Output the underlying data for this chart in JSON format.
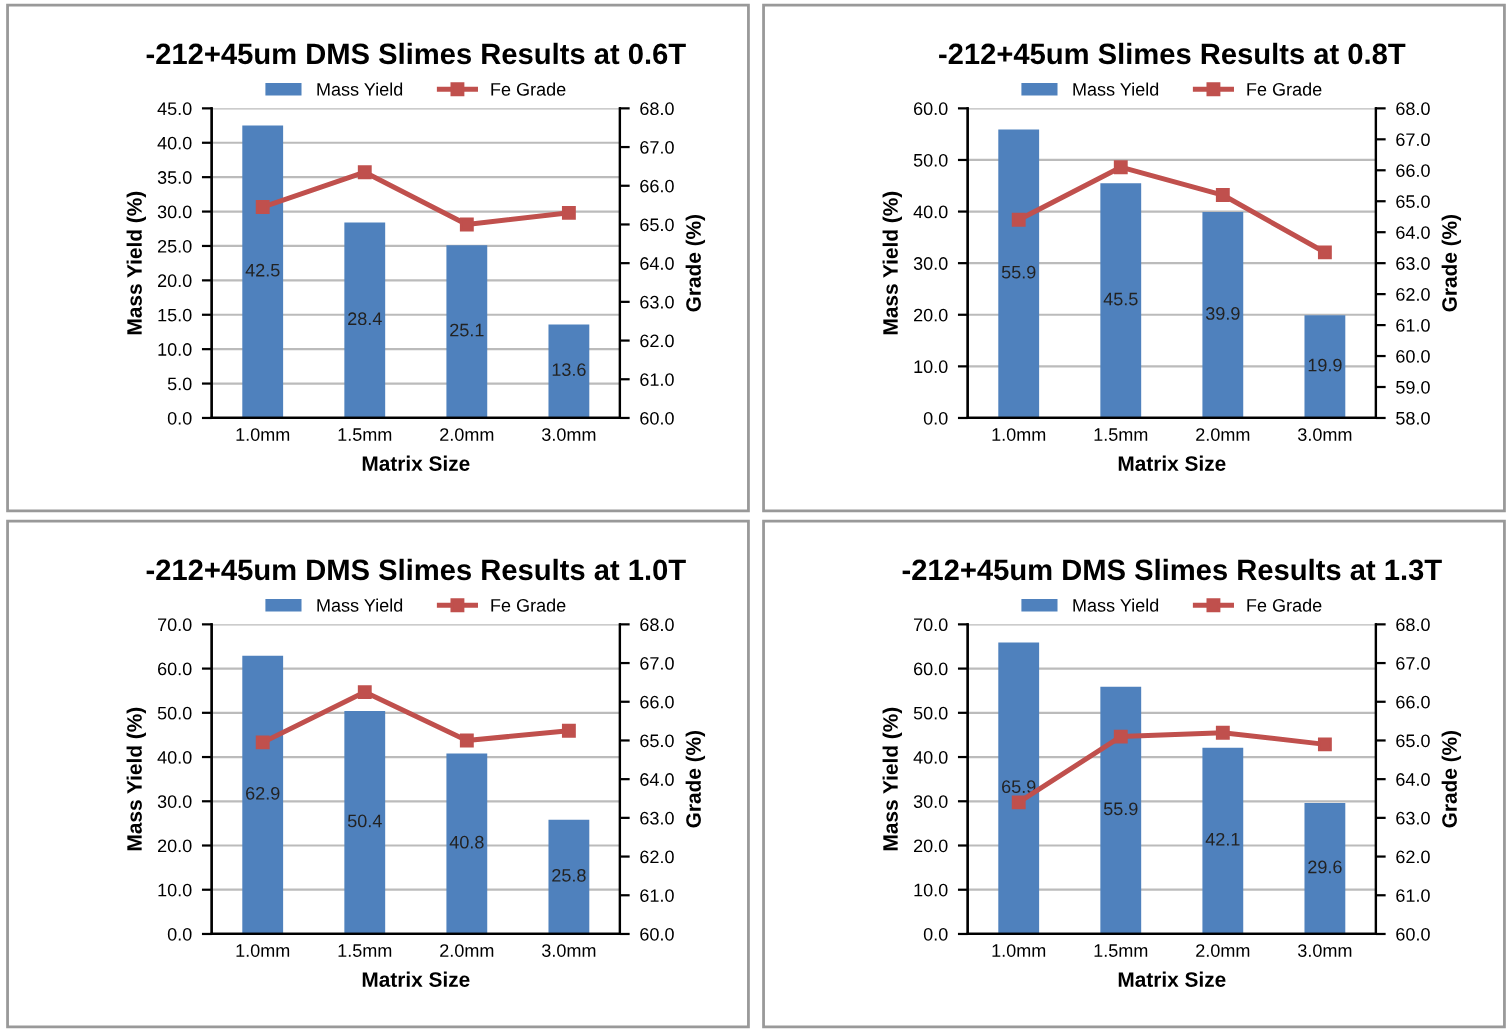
{
  "chart_data": [
    {
      "type": "bar",
      "title": "-212+45um DMS Slimes Results at 0.6T",
      "xlabel": "Matrix Size",
      "ylabel": "Mass Yield (%)",
      "y2label": "Grade (%)",
      "categories": [
        "1.0mm",
        "1.5mm",
        "2.0mm",
        "3.0mm"
      ],
      "series": [
        {
          "name": "Mass Yield",
          "color": "#4f81bd",
          "values": [
            42.5,
            28.4,
            25.1,
            13.6
          ],
          "data_labels": true
        },
        {
          "name": "Fe Grade",
          "type": "line",
          "axis": "y2",
          "color": "#c0504d",
          "marker": "square",
          "values": [
            65.45,
            66.35,
            65.0,
            65.3
          ]
        }
      ],
      "ylim": [
        0,
        45
      ],
      "yticks": [
        {
          "value": 0,
          "label": "0.0"
        },
        {
          "value": 5,
          "label": "5.0"
        },
        {
          "value": 10,
          "label": "10.0"
        },
        {
          "value": 15,
          "label": "15.0"
        },
        {
          "value": 20,
          "label": "20.0"
        },
        {
          "value": 25,
          "label": "25.0"
        },
        {
          "value": 30,
          "label": "30.0"
        },
        {
          "value": 35,
          "label": "35.0"
        },
        {
          "value": 40,
          "label": "40.0"
        },
        {
          "value": 45,
          "label": "45.0"
        }
      ],
      "y2lim": [
        60,
        68
      ],
      "y2ticks": [
        {
          "value": 60,
          "label": "60.0"
        },
        {
          "value": 61,
          "label": "61.0"
        },
        {
          "value": 62,
          "label": "62.0"
        },
        {
          "value": 63,
          "label": "63.0"
        },
        {
          "value": 64,
          "label": "64.0"
        },
        {
          "value": 65,
          "label": "65.0"
        },
        {
          "value": 66,
          "label": "66.0"
        },
        {
          "value": 67,
          "label": "67.0"
        },
        {
          "value": 68,
          "label": "68.0"
        }
      ],
      "grid": "y",
      "legend": "top"
    },
    {
      "type": "bar",
      "title": "-212+45um Slimes Results at 0.8T",
      "xlabel": "Matrix Size",
      "ylabel": "Mass Yield (%)",
      "y2label": "Grade (%)",
      "categories": [
        "1.0mm",
        "1.5mm",
        "2.0mm",
        "3.0mm"
      ],
      "series": [
        {
          "name": "Mass Yield",
          "color": "#4f81bd",
          "values": [
            55.9,
            45.5,
            39.9,
            19.9
          ],
          "data_labels": true
        },
        {
          "name": "Fe Grade",
          "type": "line",
          "axis": "y2",
          "color": "#c0504d",
          "marker": "square",
          "values": [
            64.4,
            66.1,
            65.2,
            63.35
          ]
        }
      ],
      "ylim": [
        0,
        60
      ],
      "yticks": [
        {
          "value": 0,
          "label": "0.0"
        },
        {
          "value": 10,
          "label": "10.0"
        },
        {
          "value": 20,
          "label": "20.0"
        },
        {
          "value": 30,
          "label": "30.0"
        },
        {
          "value": 40,
          "label": "40.0"
        },
        {
          "value": 50,
          "label": "50.0"
        },
        {
          "value": 60,
          "label": "60.0"
        }
      ],
      "y2lim": [
        58,
        68
      ],
      "y2ticks": [
        {
          "value": 58,
          "label": "58.0"
        },
        {
          "value": 59,
          "label": "59.0"
        },
        {
          "value": 60,
          "label": "60.0"
        },
        {
          "value": 61,
          "label": "61.0"
        },
        {
          "value": 62,
          "label": "62.0"
        },
        {
          "value": 63,
          "label": "63.0"
        },
        {
          "value": 64,
          "label": "64.0"
        },
        {
          "value": 65,
          "label": "65.0"
        },
        {
          "value": 66,
          "label": "66.0"
        },
        {
          "value": 67,
          "label": "67.0"
        },
        {
          "value": 68,
          "label": "68.0"
        }
      ],
      "grid": "y",
      "legend": "top"
    },
    {
      "type": "bar",
      "title": "-212+45um DMS Slimes Results at 1.0T",
      "xlabel": "Matrix Size",
      "ylabel": "Mass Yield (%)",
      "y2label": "Grade (%)",
      "categories": [
        "1.0mm",
        "1.5mm",
        "2.0mm",
        "3.0mm"
      ],
      "series": [
        {
          "name": "Mass Yield",
          "color": "#4f81bd",
          "values": [
            62.9,
            50.4,
            40.8,
            25.8
          ],
          "data_labels": true
        },
        {
          "name": "Fe Grade",
          "type": "line",
          "axis": "y2",
          "color": "#c0504d",
          "marker": "square",
          "values": [
            64.95,
            66.25,
            65.0,
            65.25
          ]
        }
      ],
      "ylim": [
        0,
        70
      ],
      "yticks": [
        {
          "value": 0,
          "label": "0.0"
        },
        {
          "value": 10,
          "label": "10.0"
        },
        {
          "value": 20,
          "label": "20.0"
        },
        {
          "value": 30,
          "label": "30.0"
        },
        {
          "value": 40,
          "label": "40.0"
        },
        {
          "value": 50,
          "label": "50.0"
        },
        {
          "value": 60,
          "label": "60.0"
        },
        {
          "value": 70,
          "label": "70.0"
        }
      ],
      "y2lim": [
        60,
        68
      ],
      "y2ticks": [
        {
          "value": 60,
          "label": "60.0"
        },
        {
          "value": 61,
          "label": "61.0"
        },
        {
          "value": 62,
          "label": "62.0"
        },
        {
          "value": 63,
          "label": "63.0"
        },
        {
          "value": 64,
          "label": "64.0"
        },
        {
          "value": 65,
          "label": "65.0"
        },
        {
          "value": 66,
          "label": "66.0"
        },
        {
          "value": 67,
          "label": "67.0"
        },
        {
          "value": 68,
          "label": "68.0"
        }
      ],
      "grid": "y",
      "legend": "top"
    },
    {
      "type": "bar",
      "title": "-212+45um DMS Slimes Results at 1.3T",
      "xlabel": "Matrix Size",
      "ylabel": "Mass Yield (%)",
      "y2label": "Grade (%)",
      "categories": [
        "1.0mm",
        "1.5mm",
        "2.0mm",
        "3.0mm"
      ],
      "series": [
        {
          "name": "Mass Yield",
          "color": "#4f81bd",
          "values": [
            65.9,
            55.9,
            42.1,
            29.6
          ],
          "data_labels": true
        },
        {
          "name": "Fe Grade",
          "type": "line",
          "axis": "y2",
          "color": "#c0504d",
          "marker": "square",
          "values": [
            63.4,
            65.1,
            65.2,
            64.9
          ]
        }
      ],
      "ylim": [
        0,
        70
      ],
      "yticks": [
        {
          "value": 0,
          "label": "0.0"
        },
        {
          "value": 10,
          "label": "10.0"
        },
        {
          "value": 20,
          "label": "20.0"
        },
        {
          "value": 30,
          "label": "30.0"
        },
        {
          "value": 40,
          "label": "40.0"
        },
        {
          "value": 50,
          "label": "50.0"
        },
        {
          "value": 60,
          "label": "60.0"
        },
        {
          "value": 70,
          "label": "70.0"
        }
      ],
      "y2lim": [
        60,
        68
      ],
      "y2ticks": [
        {
          "value": 60,
          "label": "60.0"
        },
        {
          "value": 61,
          "label": "61.0"
        },
        {
          "value": 62,
          "label": "62.0"
        },
        {
          "value": 63,
          "label": "63.0"
        },
        {
          "value": 64,
          "label": "64.0"
        },
        {
          "value": 65,
          "label": "65.0"
        },
        {
          "value": 66,
          "label": "66.0"
        },
        {
          "value": 67,
          "label": "67.0"
        },
        {
          "value": 68,
          "label": "68.0"
        }
      ],
      "grid": "y",
      "legend": "top"
    }
  ]
}
